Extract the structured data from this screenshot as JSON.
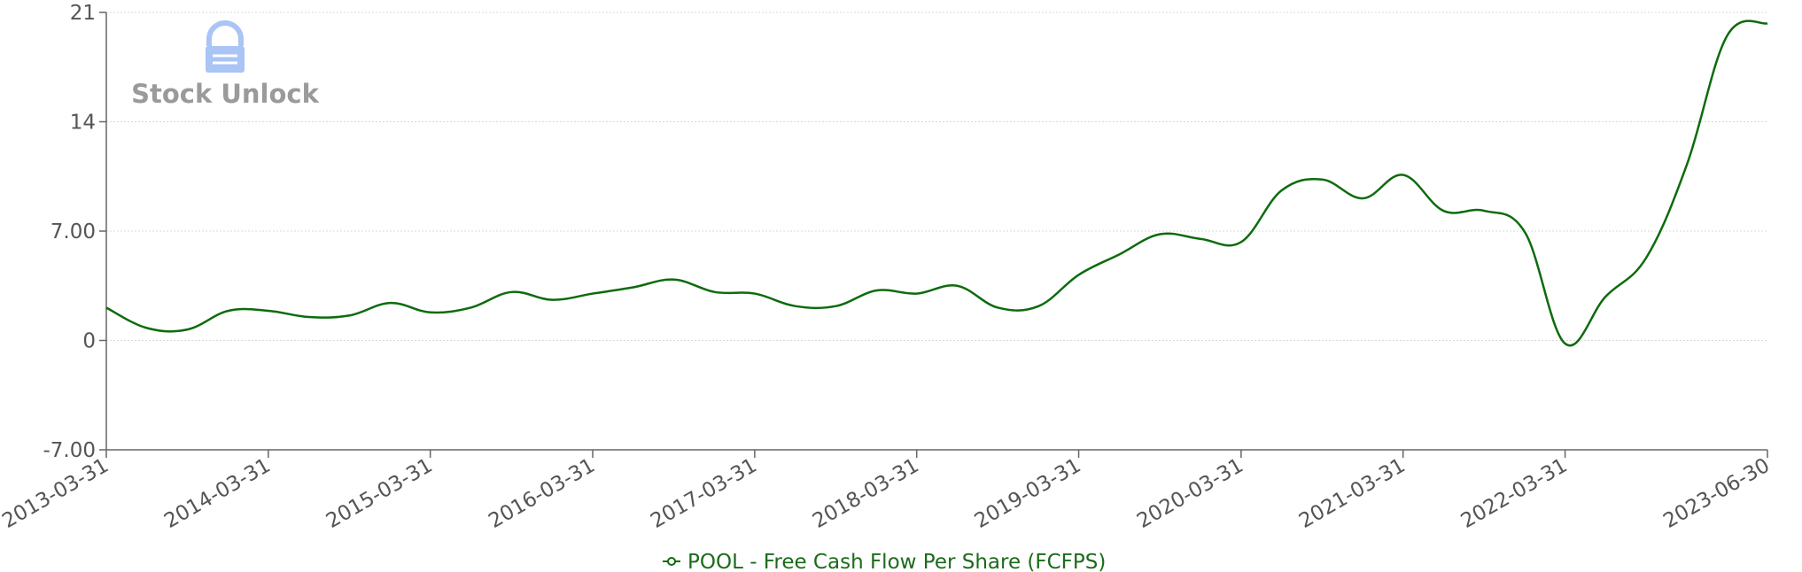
{
  "watermark": {
    "text": "Stock Unlock"
  },
  "colors": {
    "series": "#0d6b0d",
    "axis": "#666666",
    "grid": "#d8d8d8",
    "logo": "#a9c4f5",
    "watermark_text": "#9a9a9a"
  },
  "chart_data": {
    "type": "line",
    "title": "",
    "xlabel": "",
    "ylabel": "",
    "grid": true,
    "legend_position": "bottom-center",
    "ylim": [
      -7.0,
      21.0
    ],
    "y_ticks": [
      -7.0,
      0,
      7.0,
      14,
      21
    ],
    "y_tick_labels": [
      "-7.00",
      "0",
      "7.00",
      "14",
      "21"
    ],
    "x_tick_labels": [
      "2013-03-31",
      "2014-03-31",
      "2015-03-31",
      "2016-03-31",
      "2017-03-31",
      "2018-03-31",
      "2019-03-31",
      "2020-03-31",
      "2021-03-31",
      "2022-03-31",
      "2023-06-30"
    ],
    "x": [
      "2013-03-31",
      "2013-06-30",
      "2013-09-30",
      "2013-12-31",
      "2014-03-31",
      "2014-06-30",
      "2014-09-30",
      "2014-12-31",
      "2015-03-31",
      "2015-06-30",
      "2015-09-30",
      "2015-12-31",
      "2016-03-31",
      "2016-06-30",
      "2016-09-30",
      "2016-12-31",
      "2017-03-31",
      "2017-06-30",
      "2017-09-30",
      "2017-12-31",
      "2018-03-31",
      "2018-06-30",
      "2018-09-30",
      "2018-12-31",
      "2019-03-31",
      "2019-06-30",
      "2019-09-30",
      "2019-12-31",
      "2020-03-31",
      "2020-06-30",
      "2020-09-30",
      "2020-12-31",
      "2021-03-31",
      "2021-06-30",
      "2021-09-30",
      "2021-12-31",
      "2022-03-31",
      "2022-06-30",
      "2022-09-30",
      "2022-12-31",
      "2023-03-31",
      "2023-06-30"
    ],
    "series": [
      {
        "name": "POOL - Free Cash Flow Per Share (FCFPS)",
        "values": [
          2.1,
          0.8,
          0.7,
          1.9,
          1.9,
          1.5,
          1.6,
          2.4,
          1.8,
          2.1,
          3.1,
          2.6,
          3.0,
          3.4,
          3.9,
          3.1,
          3.0,
          2.2,
          2.2,
          3.2,
          3.0,
          3.5,
          2.1,
          2.2,
          4.2,
          5.5,
          6.8,
          6.5,
          6.3,
          9.6,
          10.3,
          9.1,
          10.6,
          8.3,
          8.3,
          6.9,
          -0.2,
          2.8,
          5.3,
          11.3,
          19.5,
          20.3
        ]
      }
    ]
  }
}
